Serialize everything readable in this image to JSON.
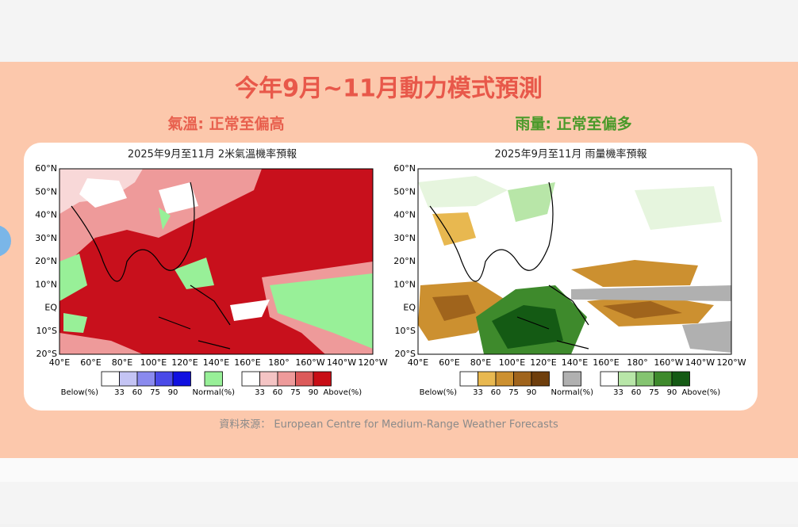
{
  "title": "今年9月~11月動力模式預測",
  "left_heading": "氣溫: 正常至偏高",
  "right_heading": "雨量: 正常至偏多",
  "maps": [
    {
      "title": "2025年9月至11月 2米氣溫機率預報",
      "lat_labels": [
        "60°N",
        "50°N",
        "40°N",
        "30°N",
        "20°N",
        "10°N",
        "EQ",
        "10°S",
        "20°S"
      ],
      "lon_labels": [
        "40°E",
        "60°E",
        "80°E",
        "100°E",
        "120°E",
        "140°E",
        "160°E",
        "180°",
        "160°W",
        "140°W",
        "120°W"
      ],
      "legend": {
        "below_label": "Below(%)",
        "below_ticks": [
          "33",
          "60",
          "75",
          "90"
        ],
        "below_colors": [
          "#ffffff",
          "#c4c4f4",
          "#8a8aee",
          "#4a4ae8",
          "#1010e0"
        ],
        "normal_label": "Normal(%)",
        "normal_color": "#98f098",
        "above_ticks": [
          "33",
          "60",
          "75",
          "90"
        ],
        "above_colors": [
          "#ffffff",
          "#f4c4c4",
          "#ee9a9a",
          "#dc5a5a",
          "#c80e16"
        ],
        "above_label": "Above(%)"
      }
    },
    {
      "title": "2025年9月至11月 雨量機率預報",
      "lat_labels": [
        "60°N",
        "50°N",
        "40°N",
        "30°N",
        "20°N",
        "10°N",
        "EQ",
        "10°S",
        "20°S"
      ],
      "lon_labels": [
        "40°E",
        "60°E",
        "80°E",
        "100°E",
        "120°E",
        "140°E",
        "160°E",
        "180°",
        "160°W",
        "140°W",
        "120°W"
      ],
      "legend": {
        "below_label": "Below(%)",
        "below_ticks": [
          "33",
          "60",
          "75",
          "90"
        ],
        "below_colors": [
          "#ffffff",
          "#e8b850",
          "#cc9030",
          "#a0641c",
          "#6e3e0c"
        ],
        "normal_label": "Normal(%)",
        "normal_color": "#b0b0b0",
        "above_ticks": [
          "33",
          "60",
          "75",
          "90"
        ],
        "above_colors": [
          "#ffffff",
          "#b8e6a8",
          "#84c470",
          "#3e8a2c",
          "#145a14"
        ],
        "above_label": "Above(%)"
      }
    }
  ],
  "source": "資料來源： European Centre for Medium-Range Weather Forecasts"
}
